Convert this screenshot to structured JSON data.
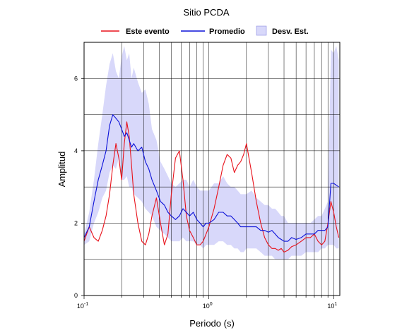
{
  "chart_data": {
    "type": "line",
    "title": "Sitio PCDA",
    "xlabel": "Periodo (s)",
    "ylabel": "Amplitud",
    "x_scale": "log",
    "xlim": [
      0.1,
      11.2
    ],
    "ylim": [
      0,
      7.0
    ],
    "y_ticks": [
      {
        "value": 0,
        "label": "0"
      },
      {
        "value": 2,
        "label": "2"
      },
      {
        "value": 4,
        "label": "4"
      },
      {
        "value": 6,
        "label": "6"
      }
    ],
    "x_ticks": [
      {
        "base": "10",
        "exp": "-1",
        "value": 0.1
      },
      {
        "base": "10",
        "exp": "0",
        "value": 1
      },
      {
        "base": "10",
        "exp": "1",
        "value": 10
      }
    ],
    "grid": true,
    "legend": {
      "placement": "top",
      "items": [
        {
          "label": "Este evento",
          "color": "#e8111a",
          "kind": "line"
        },
        {
          "label": "Promedio",
          "color": "#0a10d8",
          "kind": "line"
        },
        {
          "label": "Desv. Est.",
          "color": "#d8d8fa",
          "kind": "band"
        }
      ]
    },
    "x": [
      0.1,
      0.11,
      0.12,
      0.13,
      0.14,
      0.15,
      0.16,
      0.17,
      0.18,
      0.19,
      0.2,
      0.21,
      0.22,
      0.23,
      0.24,
      0.25,
      0.27,
      0.29,
      0.31,
      0.33,
      0.35,
      0.38,
      0.41,
      0.44,
      0.47,
      0.5,
      0.54,
      0.58,
      0.62,
      0.66,
      0.7,
      0.75,
      0.8,
      0.85,
      0.9,
      0.95,
      1.0,
      1.1,
      1.2,
      1.3,
      1.4,
      1.5,
      1.6,
      1.7,
      1.8,
      1.9,
      2.0,
      2.2,
      2.4,
      2.6,
      2.8,
      3.0,
      3.2,
      3.4,
      3.6,
      3.8,
      4.0,
      4.3,
      4.6,
      5.0,
      5.5,
      6.0,
      6.5,
      7.0,
      7.5,
      8.0,
      8.5,
      9.0,
      9.5,
      10.0,
      10.5,
      11.0
    ],
    "series": [
      {
        "name": "Este evento",
        "color": "#e8111a",
        "values": [
          1.5,
          1.9,
          1.6,
          1.5,
          1.8,
          2.2,
          2.8,
          3.6,
          4.2,
          3.8,
          3.2,
          4.2,
          4.8,
          4.4,
          3.6,
          2.8,
          2.0,
          1.5,
          1.4,
          1.7,
          2.2,
          2.7,
          2.0,
          1.4,
          1.7,
          2.8,
          3.8,
          4.0,
          3.2,
          2.2,
          1.8,
          1.6,
          1.4,
          1.4,
          1.5,
          1.7,
          1.9,
          2.4,
          3.0,
          3.6,
          3.9,
          3.8,
          3.4,
          3.6,
          3.7,
          3.9,
          4.2,
          3.4,
          2.6,
          2.0,
          1.6,
          1.4,
          1.3,
          1.3,
          1.25,
          1.3,
          1.2,
          1.25,
          1.35,
          1.4,
          1.5,
          1.6,
          1.6,
          1.7,
          1.5,
          1.4,
          1.5,
          2.0,
          2.6,
          2.3,
          1.9,
          1.6
        ]
      },
      {
        "name": "Promedio",
        "color": "#0a10d8",
        "values": [
          1.6,
          1.9,
          2.6,
          3.2,
          3.6,
          4.0,
          4.7,
          5.0,
          4.9,
          4.8,
          4.6,
          4.4,
          4.5,
          4.3,
          4.1,
          4.2,
          4.0,
          4.1,
          3.7,
          3.5,
          3.2,
          2.9,
          2.6,
          2.5,
          2.3,
          2.2,
          2.1,
          2.2,
          2.4,
          2.3,
          2.2,
          2.3,
          2.1,
          2.0,
          1.9,
          2.0,
          2.0,
          2.1,
          2.3,
          2.3,
          2.2,
          2.2,
          2.1,
          2.0,
          1.9,
          1.9,
          1.9,
          1.9,
          1.9,
          1.8,
          1.8,
          1.75,
          1.8,
          1.7,
          1.6,
          1.55,
          1.5,
          1.5,
          1.6,
          1.55,
          1.6,
          1.7,
          1.7,
          1.7,
          1.8,
          1.8,
          1.8,
          1.9,
          3.1,
          3.1,
          3.05,
          3.0
        ]
      }
    ],
    "band": {
      "name": "Desv. Est.",
      "color": "#d8d8fa",
      "upper": [
        1.7,
        2.3,
        3.2,
        4.2,
        5.0,
        5.8,
        6.4,
        6.7,
        6.2,
        6.0,
        6.6,
        6.9,
        6.5,
        6.7,
        6.0,
        6.3,
        5.9,
        5.6,
        5.7,
        5.3,
        4.6,
        4.3,
        3.7,
        3.5,
        3.3,
        3.1,
        3.0,
        3.1,
        3.2,
        3.2,
        3.0,
        3.2,
        3.0,
        2.9,
        2.9,
        2.9,
        2.9,
        3.1,
        3.1,
        3.3,
        3.1,
        3.0,
        3.0,
        2.9,
        2.8,
        2.8,
        2.8,
        2.9,
        2.7,
        2.6,
        2.5,
        2.5,
        2.4,
        2.4,
        2.3,
        2.2,
        2.2,
        2.0,
        2.0,
        2.0,
        2.0,
        2.0,
        2.0,
        2.1,
        2.2,
        2.2,
        2.4,
        2.6,
        6.8,
        6.7,
        6.9,
        6.5
      ],
      "lower": [
        1.4,
        1.5,
        2.0,
        2.3,
        2.7,
        2.9,
        3.4,
        3.6,
        3.5,
        3.8,
        3.2,
        3.2,
        3.3,
        3.0,
        3.0,
        2.8,
        2.7,
        2.6,
        2.4,
        2.3,
        2.2,
        1.9,
        1.8,
        1.7,
        1.6,
        1.5,
        1.5,
        1.5,
        1.6,
        1.5,
        1.5,
        1.5,
        1.4,
        1.4,
        1.3,
        1.4,
        1.4,
        1.4,
        1.5,
        1.5,
        1.4,
        1.4,
        1.3,
        1.3,
        1.2,
        1.2,
        1.3,
        1.3,
        1.3,
        1.2,
        1.1,
        1.1,
        1.1,
        1.0,
        1.0,
        1.0,
        1.0,
        1.0,
        1.1,
        1.1,
        1.1,
        1.2,
        1.2,
        1.2,
        1.2,
        1.3,
        1.3,
        1.4,
        1.4,
        1.4,
        1.3,
        1.3
      ]
    }
  }
}
